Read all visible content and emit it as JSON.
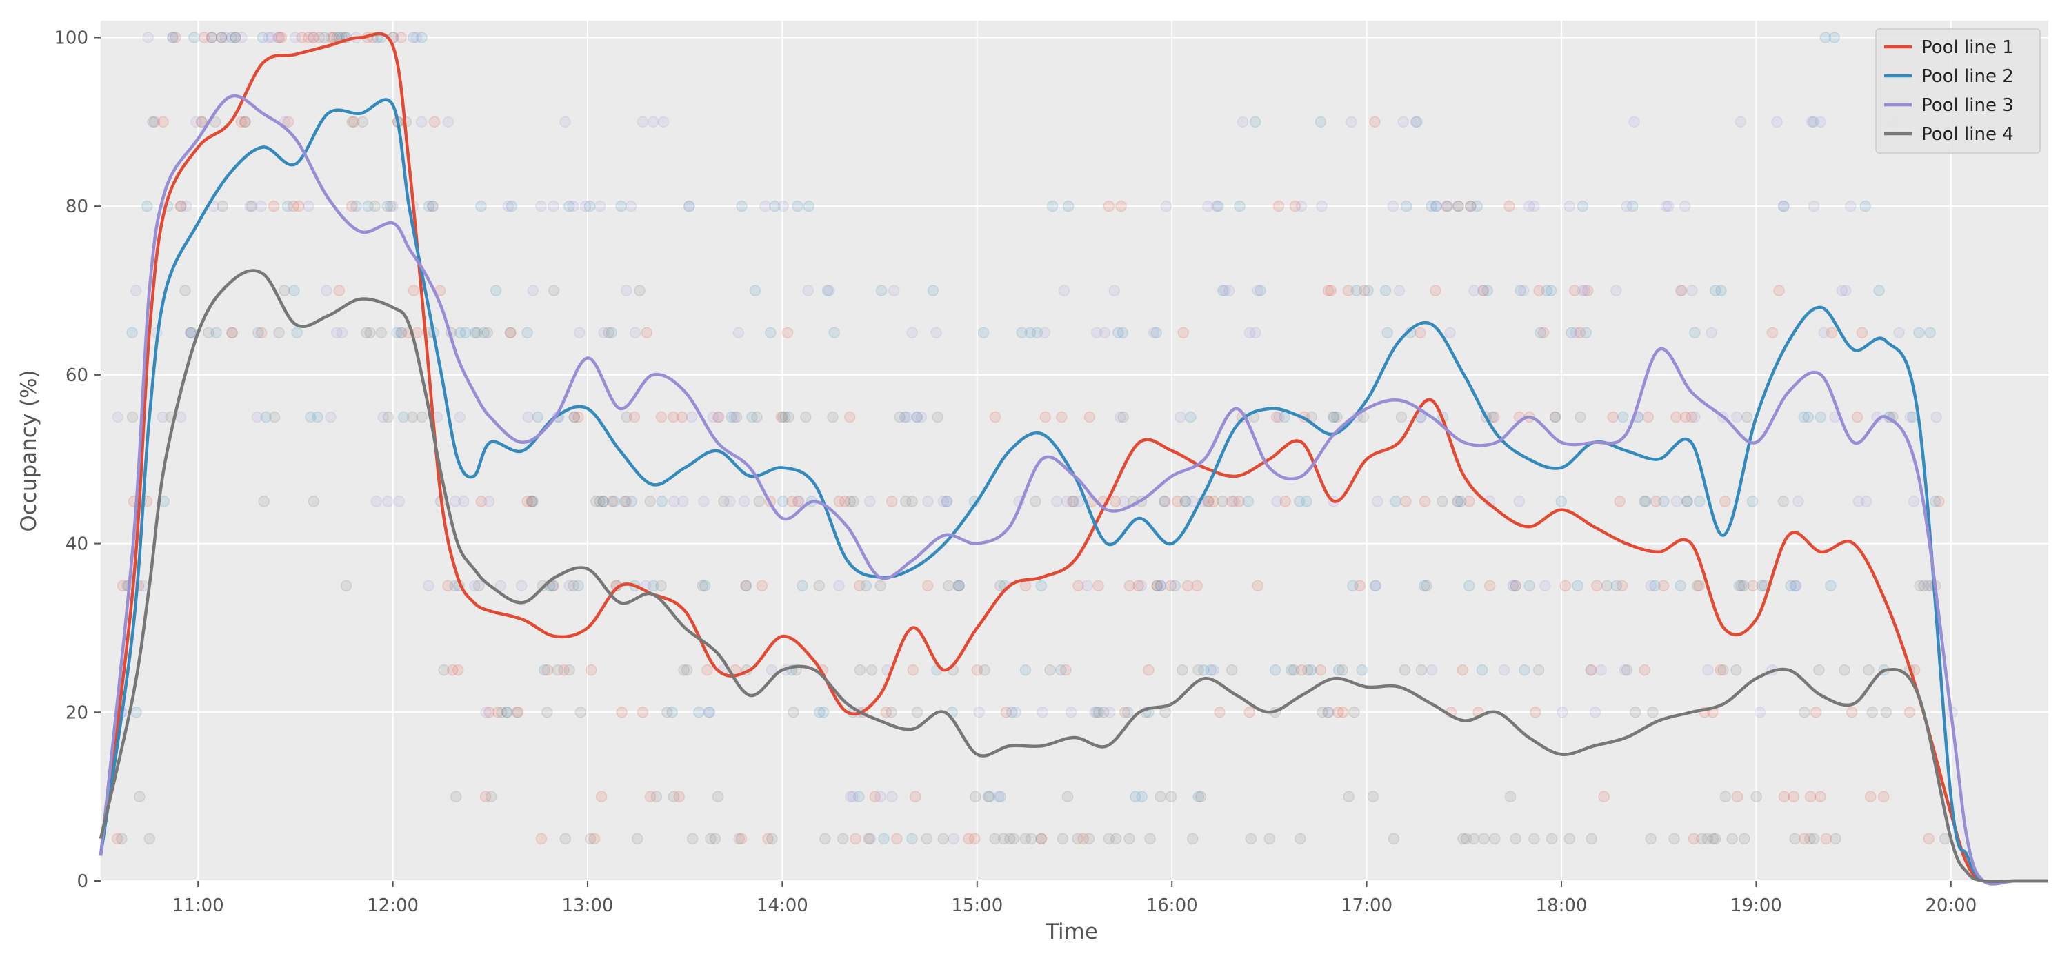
{
  "chart_data": {
    "type": "line",
    "title": "",
    "xlabel": "Time",
    "ylabel": "Occupancy (%)",
    "xlim": [
      "10:30",
      "20:30"
    ],
    "ylim": [
      0,
      102
    ],
    "x_ticks": [
      "11:00",
      "12:00",
      "13:00",
      "14:00",
      "15:00",
      "16:00",
      "17:00",
      "18:00",
      "19:00",
      "20:00"
    ],
    "y_ticks": [
      0,
      20,
      40,
      60,
      80,
      100
    ],
    "grid": true,
    "legend_position": "top-right",
    "scatter_levels": [
      5,
      10,
      20,
      25,
      35,
      45,
      55,
      65,
      70,
      80,
      90,
      100
    ],
    "series": [
      {
        "name": "Pool line 1",
        "color": "#E24A33",
        "x": [
          "10:30",
          "10:40",
          "10:45",
          "10:50",
          "11:00",
          "11:10",
          "11:20",
          "11:30",
          "11:40",
          "11:50",
          "12:00",
          "12:05",
          "12:10",
          "12:15",
          "12:20",
          "12:25",
          "12:30",
          "12:40",
          "12:50",
          "13:00",
          "13:10",
          "13:20",
          "13:30",
          "13:40",
          "13:50",
          "14:00",
          "14:10",
          "14:20",
          "14:30",
          "14:40",
          "14:50",
          "15:00",
          "15:10",
          "15:20",
          "15:30",
          "15:40",
          "15:50",
          "16:00",
          "16:10",
          "16:20",
          "16:30",
          "16:40",
          "16:50",
          "17:00",
          "17:10",
          "17:20",
          "17:30",
          "17:40",
          "17:50",
          "18:00",
          "18:10",
          "18:20",
          "18:30",
          "18:40",
          "18:50",
          "19:00",
          "19:10",
          "19:20",
          "19:30",
          "19:40",
          "19:50",
          "20:00",
          "20:05",
          "20:10",
          "20:20",
          "20:30"
        ],
        "y": [
          3,
          35,
          65,
          80,
          87,
          90,
          97,
          98,
          99,
          100,
          99,
          85,
          65,
          45,
          36,
          33,
          32,
          31,
          29,
          30,
          35,
          34,
          32,
          25,
          25,
          29,
          26,
          20,
          22,
          30,
          25,
          30,
          35,
          36,
          38,
          45,
          52,
          51,
          49,
          48,
          50,
          52,
          45,
          50,
          52,
          57,
          48,
          44,
          42,
          44,
          42,
          40,
          39,
          40,
          30,
          31,
          41,
          39,
          40,
          33,
          22,
          8,
          2,
          0,
          0,
          0
        ],
        "smooth": true
      },
      {
        "name": "Pool line 2",
        "color": "#348ABD",
        "x": [
          "10:30",
          "10:40",
          "10:45",
          "10:50",
          "11:00",
          "11:10",
          "11:20",
          "11:30",
          "11:40",
          "11:50",
          "12:00",
          "12:05",
          "12:10",
          "12:15",
          "12:20",
          "12:25",
          "12:30",
          "12:40",
          "12:50",
          "13:00",
          "13:10",
          "13:20",
          "13:30",
          "13:40",
          "13:50",
          "14:00",
          "14:10",
          "14:20",
          "14:30",
          "14:40",
          "14:50",
          "15:00",
          "15:10",
          "15:20",
          "15:30",
          "15:40",
          "15:50",
          "16:00",
          "16:10",
          "16:20",
          "16:30",
          "16:40",
          "16:50",
          "17:00",
          "17:10",
          "17:20",
          "17:30",
          "17:40",
          "17:50",
          "18:00",
          "18:10",
          "18:20",
          "18:30",
          "18:40",
          "18:50",
          "19:00",
          "19:10",
          "19:20",
          "19:30",
          "19:40",
          "19:50",
          "20:00",
          "20:05",
          "20:10",
          "20:20",
          "20:30"
        ],
        "y": [
          3,
          30,
          55,
          70,
          78,
          84,
          87,
          85,
          91,
          91,
          92,
          80,
          70,
          60,
          50,
          48,
          52,
          51,
          55,
          56,
          51,
          47,
          49,
          51,
          48,
          49,
          47,
          38,
          36,
          37,
          40,
          45,
          51,
          53,
          48,
          40,
          43,
          40,
          46,
          54,
          56,
          55,
          53,
          57,
          64,
          66,
          60,
          53,
          50,
          49,
          52,
          51,
          50,
          52,
          41,
          55,
          64,
          68,
          63,
          64,
          55,
          10,
          3,
          0,
          0,
          0
        ],
        "smooth": true
      },
      {
        "name": "Pool line 3",
        "color": "#988ED5",
        "x": [
          "10:30",
          "10:40",
          "10:45",
          "10:50",
          "11:00",
          "11:10",
          "11:20",
          "11:30",
          "11:40",
          "11:50",
          "12:00",
          "12:05",
          "12:10",
          "12:15",
          "12:20",
          "12:25",
          "12:30",
          "12:40",
          "12:50",
          "13:00",
          "13:10",
          "13:20",
          "13:30",
          "13:40",
          "13:50",
          "14:00",
          "14:10",
          "14:20",
          "14:30",
          "14:40",
          "14:50",
          "15:00",
          "15:10",
          "15:20",
          "15:30",
          "15:40",
          "15:50",
          "16:00",
          "16:10",
          "16:20",
          "16:30",
          "16:40",
          "16:50",
          "17:00",
          "17:10",
          "17:20",
          "17:30",
          "17:40",
          "17:50",
          "18:00",
          "18:10",
          "18:20",
          "18:30",
          "18:40",
          "18:50",
          "19:00",
          "19:10",
          "19:20",
          "19:30",
          "19:40",
          "19:50",
          "20:00",
          "20:05",
          "20:10",
          "20:20",
          "20:30"
        ],
        "y": [
          3,
          40,
          70,
          82,
          88,
          93,
          91,
          88,
          81,
          77,
          78,
          75,
          72,
          68,
          62,
          58,
          55,
          52,
          55,
          62,
          56,
          60,
          58,
          52,
          49,
          43,
          45,
          42,
          36,
          38,
          41,
          40,
          42,
          50,
          48,
          44,
          45,
          48,
          50,
          56,
          49,
          48,
          53,
          56,
          57,
          55,
          52,
          52,
          55,
          52,
          52,
          53,
          63,
          58,
          55,
          52,
          58,
          60,
          52,
          55,
          48,
          20,
          5,
          0,
          0,
          0
        ],
        "smooth": true
      },
      {
        "name": "Pool line 4",
        "color": "#777777",
        "x": [
          "10:30",
          "10:40",
          "10:45",
          "10:50",
          "11:00",
          "11:10",
          "11:20",
          "11:30",
          "11:40",
          "11:50",
          "12:00",
          "12:05",
          "12:10",
          "12:15",
          "12:20",
          "12:25",
          "12:30",
          "12:40",
          "12:50",
          "13:00",
          "13:10",
          "13:20",
          "13:30",
          "13:40",
          "13:50",
          "14:00",
          "14:10",
          "14:20",
          "14:30",
          "14:40",
          "14:50",
          "15:00",
          "15:10",
          "15:20",
          "15:30",
          "15:40",
          "15:50",
          "16:00",
          "16:10",
          "16:20",
          "16:30",
          "16:40",
          "16:50",
          "17:00",
          "17:10",
          "17:20",
          "17:30",
          "17:40",
          "17:50",
          "18:00",
          "18:10",
          "18:20",
          "18:30",
          "18:40",
          "18:50",
          "19:00",
          "19:10",
          "19:20",
          "19:30",
          "19:40",
          "19:50",
          "20:00",
          "20:05",
          "20:10",
          "20:20",
          "20:30"
        ],
        "y": [
          5,
          22,
          35,
          50,
          65,
          71,
          72,
          66,
          67,
          69,
          68,
          66,
          58,
          48,
          40,
          37,
          35,
          33,
          36,
          37,
          33,
          34,
          30,
          27,
          22,
          25,
          25,
          21,
          19,
          18,
          20,
          15,
          16,
          16,
          17,
          16,
          20,
          21,
          24,
          22,
          20,
          22,
          24,
          23,
          23,
          21,
          19,
          20,
          17,
          15,
          16,
          17,
          19,
          20,
          21,
          24,
          25,
          22,
          21,
          25,
          22,
          5,
          1,
          0,
          0,
          0
        ],
        "smooth": true
      }
    ]
  }
}
